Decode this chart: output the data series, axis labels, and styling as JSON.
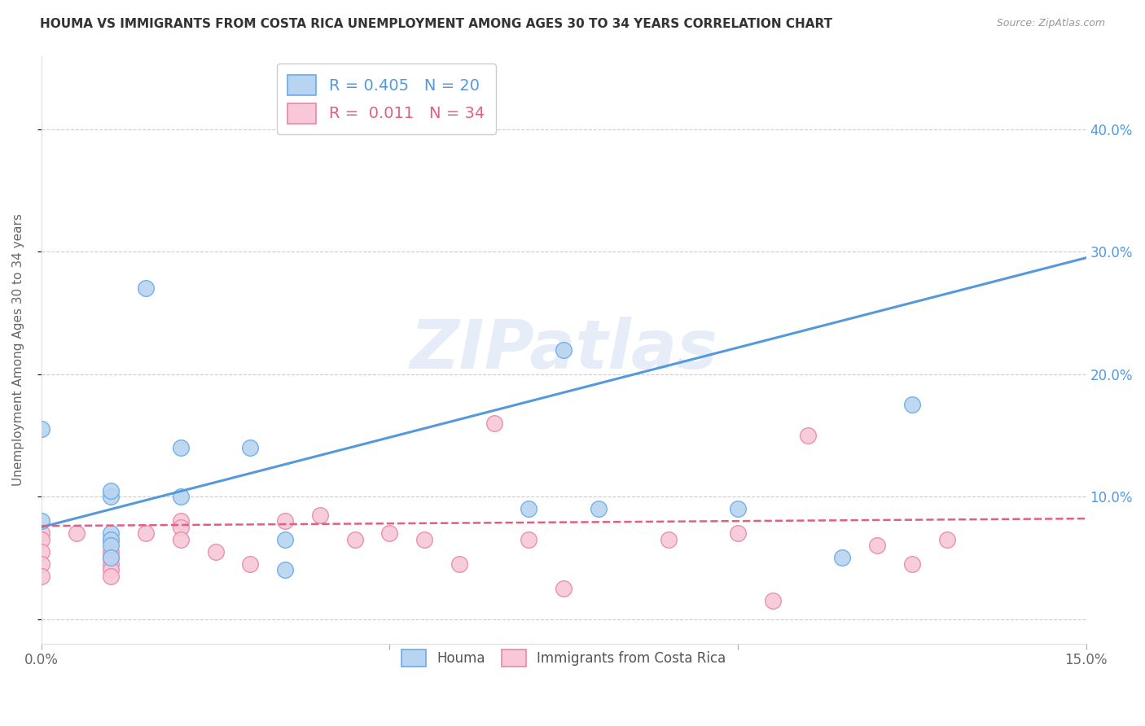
{
  "title": "HOUMA VS IMMIGRANTS FROM COSTA RICA UNEMPLOYMENT AMONG AGES 30 TO 34 YEARS CORRELATION CHART",
  "source": "Source: ZipAtlas.com",
  "ylabel_label": "Unemployment Among Ages 30 to 34 years",
  "xlim": [
    0.0,
    0.15
  ],
  "ylim": [
    -0.02,
    0.46
  ],
  "xticks": [
    0.0,
    0.05,
    0.1,
    0.15
  ],
  "xticklabels": [
    "0.0%",
    "",
    "",
    "15.0%"
  ],
  "yticks": [
    0.0,
    0.1,
    0.2,
    0.3,
    0.4
  ],
  "ytick_right_labels": [
    "",
    "10.0%",
    "20.0%",
    "30.0%",
    "40.0%"
  ],
  "houma_R": 0.405,
  "houma_N": 20,
  "cr_R": 0.011,
  "cr_N": 34,
  "houma_color": "#b8d4f0",
  "houma_edge_color": "#6aaae8",
  "houma_line_color": "#5599dd",
  "cr_color": "#f8c8d8",
  "cr_edge_color": "#e888aa",
  "cr_line_color": "#e06080",
  "watermark": "ZIPatlas",
  "houma_line_x0": 0.0,
  "houma_line_y0": 0.075,
  "houma_line_x1": 0.15,
  "houma_line_y1": 0.295,
  "cr_line_x0": 0.0,
  "cr_line_y0": 0.076,
  "cr_line_x1": 0.15,
  "cr_line_y1": 0.082,
  "houma_x": [
    0.0,
    0.0,
    0.01,
    0.01,
    0.01,
    0.01,
    0.01,
    0.01,
    0.015,
    0.02,
    0.02,
    0.03,
    0.035,
    0.035,
    0.07,
    0.075,
    0.08,
    0.1,
    0.115,
    0.125
  ],
  "houma_y": [
    0.08,
    0.155,
    0.1,
    0.105,
    0.07,
    0.065,
    0.06,
    0.05,
    0.27,
    0.14,
    0.1,
    0.14,
    0.065,
    0.04,
    0.09,
    0.22,
    0.09,
    0.09,
    0.05,
    0.175
  ],
  "cr_x": [
    0.0,
    0.0,
    0.0,
    0.0,
    0.0,
    0.005,
    0.01,
    0.01,
    0.01,
    0.01,
    0.01,
    0.01,
    0.015,
    0.02,
    0.02,
    0.02,
    0.025,
    0.03,
    0.035,
    0.04,
    0.045,
    0.05,
    0.055,
    0.06,
    0.065,
    0.07,
    0.075,
    0.09,
    0.1,
    0.105,
    0.11,
    0.12,
    0.125,
    0.13
  ],
  "cr_y": [
    0.07,
    0.065,
    0.055,
    0.045,
    0.035,
    0.07,
    0.065,
    0.055,
    0.05,
    0.045,
    0.04,
    0.035,
    0.07,
    0.08,
    0.075,
    0.065,
    0.055,
    0.045,
    0.08,
    0.085,
    0.065,
    0.07,
    0.065,
    0.045,
    0.16,
    0.065,
    0.025,
    0.065,
    0.07,
    0.015,
    0.15,
    0.06,
    0.045,
    0.065
  ]
}
